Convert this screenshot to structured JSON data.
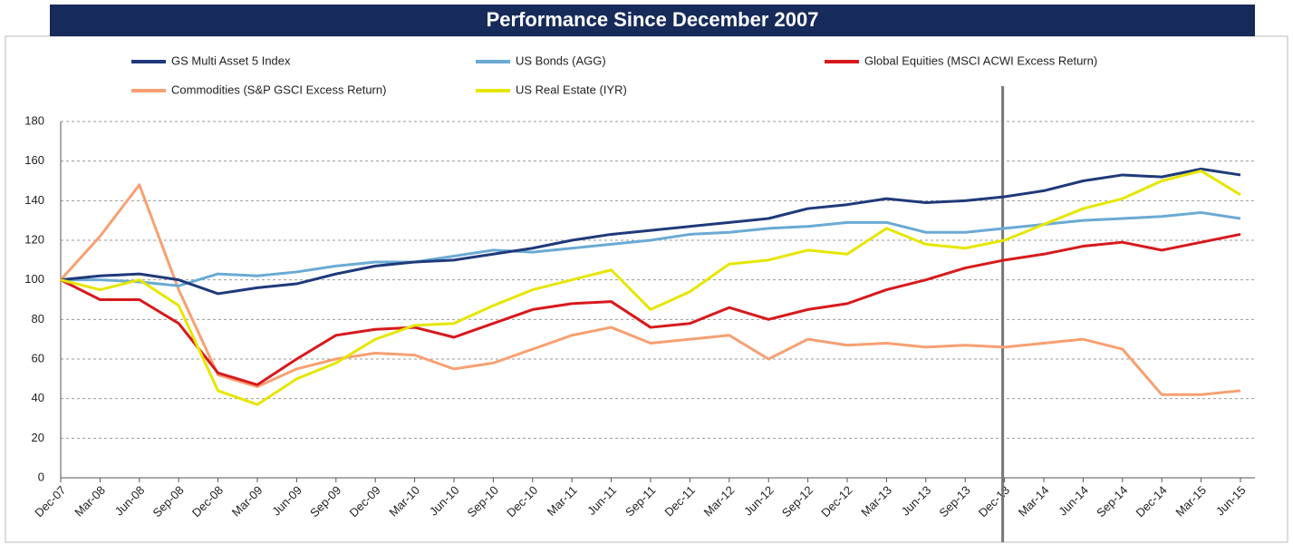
{
  "chart_data": {
    "type": "line",
    "title": "Performance Since December 2007",
    "categories": [
      "Dec-07",
      "Mar-08",
      "Jun-08",
      "Sep-08",
      "Dec-08",
      "Mar-09",
      "Jun-09",
      "Sep-09",
      "Dec-09",
      "Mar-10",
      "Jun-10",
      "Sep-10",
      "Dec-10",
      "Mar-11",
      "Jun-11",
      "Sep-11",
      "Dec-11",
      "Mar-12",
      "Jun-12",
      "Sep-12",
      "Dec-12",
      "Mar-13",
      "Jun-13",
      "Sep-13",
      "Dec-13",
      "Mar-14",
      "Jun-14",
      "Sep-14",
      "Dec-14",
      "Mar-15",
      "Jun-15"
    ],
    "series": [
      {
        "name": "GS Multi Asset 5 Index",
        "color": "#1f3a7a",
        "values": [
          100,
          102,
          103,
          100,
          93,
          96,
          98,
          103,
          107,
          109,
          110,
          113,
          116,
          120,
          123,
          125,
          127,
          129,
          131,
          136,
          138,
          141,
          139,
          140,
          142,
          145,
          150,
          153,
          152,
          156,
          153
        ]
      },
      {
        "name": "US Bonds (AGG)",
        "color": "#6aaad4",
        "values": [
          100,
          100,
          99,
          97,
          103,
          102,
          104,
          107,
          109,
          109,
          112,
          115,
          114,
          116,
          118,
          120,
          123,
          124,
          126,
          127,
          129,
          129,
          124,
          124,
          126,
          128,
          130,
          131,
          132,
          134,
          131
        ]
      },
      {
        "name": "Global Equities (MSCI ACWI Excess Return)",
        "color": "#d7191c",
        "values": [
          100,
          90,
          90,
          78,
          53,
          47,
          60,
          72,
          75,
          76,
          71,
          78,
          85,
          88,
          89,
          76,
          78,
          86,
          80,
          85,
          88,
          95,
          100,
          106,
          110,
          113,
          117,
          119,
          115,
          119,
          123
        ]
      },
      {
        "name": "Commodities (S&P GSCI Excess Return)",
        "color": "#f7a072",
        "values": [
          100,
          122,
          148,
          95,
          52,
          46,
          55,
          60,
          63,
          62,
          55,
          58,
          65,
          72,
          76,
          68,
          70,
          72,
          60,
          70,
          67,
          68,
          66,
          67,
          66,
          68,
          70,
          65,
          42,
          42,
          44
        ]
      },
      {
        "name": "US Real Estate  (IYR)",
        "color": "#e6e600",
        "values": [
          100,
          95,
          100,
          87,
          44,
          37,
          50,
          58,
          70,
          77,
          78,
          87,
          95,
          100,
          105,
          85,
          94,
          108,
          110,
          115,
          113,
          126,
          118,
          116,
          120,
          128,
          136,
          141,
          150,
          155,
          143
        ]
      }
    ],
    "ylim": [
      0,
      180
    ],
    "yticks": [
      0,
      20,
      40,
      60,
      80,
      100,
      120,
      140,
      160,
      180
    ],
    "grid": true
  }
}
